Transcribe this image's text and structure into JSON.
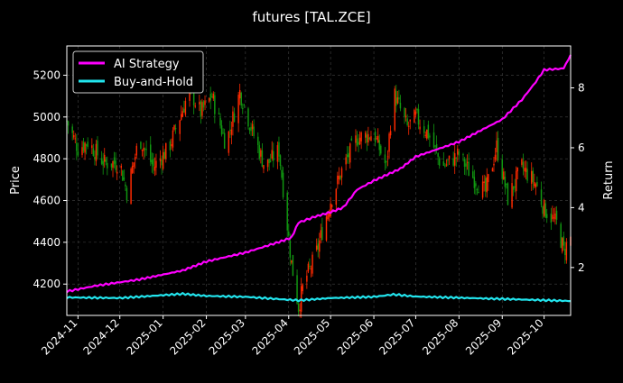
{
  "chart_data": {
    "type": "candlestick",
    "title": "futures [TAL.ZCE]",
    "ylabel_left": "Price",
    "ylabel_right": "Return",
    "background": "#000000",
    "grid": true,
    "legend_position": "top-left",
    "x_range": [
      "2024-10-24",
      "2025-10-20"
    ],
    "x_tick_labels": [
      "2024-11",
      "2024-12",
      "2025-01",
      "2025-02",
      "2025-03",
      "2025-04",
      "2025-05",
      "2025-06",
      "2025-07",
      "2025-08",
      "2025-09",
      "2025-10"
    ],
    "x_ticks": [
      "2024-11-01",
      "2024-12-01",
      "2025-01-01",
      "2025-02-01",
      "2025-03-01",
      "2025-04-01",
      "2025-05-01",
      "2025-06-01",
      "2025-07-01",
      "2025-08-01",
      "2025-09-01",
      "2025-10-01"
    ],
    "y_left_range": [
      4050,
      5340
    ],
    "y_left_ticks": [
      4200,
      4400,
      4600,
      4800,
      5000,
      5200
    ],
    "y_right_range": [
      0.4,
      9.4
    ],
    "y_right_ticks": [
      2,
      4,
      6,
      8
    ],
    "candle_colors": {
      "up": "#ff2a00",
      "down": "#119911"
    },
    "price_anchors": [
      [
        "2024-10-24",
        4980
      ],
      [
        "2024-11-01",
        4850
      ],
      [
        "2024-11-08",
        4880
      ],
      [
        "2024-11-20",
        4780
      ],
      [
        "2024-12-01",
        4780
      ],
      [
        "2024-12-06",
        4640
      ],
      [
        "2024-12-15",
        4900
      ],
      [
        "2024-12-25",
        4760
      ],
      [
        "2025-01-05",
        4850
      ],
      [
        "2025-01-20",
        5130
      ],
      [
        "2025-01-28",
        5020
      ],
      [
        "2025-02-05",
        5100
      ],
      [
        "2025-02-15",
        4870
      ],
      [
        "2025-02-25",
        5120
      ],
      [
        "2025-03-05",
        4950
      ],
      [
        "2025-03-15",
        4760
      ],
      [
        "2025-03-25",
        4840
      ],
      [
        "2025-04-03",
        4300
      ],
      [
        "2025-04-08",
        4090
      ],
      [
        "2025-04-12",
        4210
      ],
      [
        "2025-04-20",
        4330
      ],
      [
        "2025-05-01",
        4600
      ],
      [
        "2025-05-10",
        4760
      ],
      [
        "2025-05-20",
        4900
      ],
      [
        "2025-06-01",
        4920
      ],
      [
        "2025-06-10",
        4760
      ],
      [
        "2025-06-15",
        5120
      ],
      [
        "2025-06-25",
        4950
      ],
      [
        "2025-07-01",
        5000
      ],
      [
        "2025-07-10",
        4920
      ],
      [
        "2025-07-20",
        4760
      ],
      [
        "2025-08-01",
        4820
      ],
      [
        "2025-08-10",
        4720
      ],
      [
        "2025-08-20",
        4640
      ],
      [
        "2025-08-28",
        4860
      ],
      [
        "2025-09-05",
        4610
      ],
      [
        "2025-09-15",
        4760
      ],
      [
        "2025-09-25",
        4680
      ],
      [
        "2025-10-01",
        4560
      ],
      [
        "2025-10-10",
        4490
      ],
      [
        "2025-10-15",
        4360
      ],
      [
        "2025-10-20",
        4420
      ]
    ],
    "series": [
      {
        "name": "AI Strategy",
        "color": "#ff00ff",
        "axis": "right",
        "points": [
          [
            "2024-10-24",
            1.2
          ],
          [
            "2024-11-15",
            1.4
          ],
          [
            "2024-12-15",
            1.6
          ],
          [
            "2025-01-15",
            1.9
          ],
          [
            "2025-02-01",
            2.2
          ],
          [
            "2025-03-01",
            2.5
          ],
          [
            "2025-03-25",
            2.85
          ],
          [
            "2025-04-03",
            3.0
          ],
          [
            "2025-04-08",
            3.5
          ],
          [
            "2025-04-20",
            3.7
          ],
          [
            "2025-05-01",
            3.85
          ],
          [
            "2025-05-10",
            4.0
          ],
          [
            "2025-05-20",
            4.6
          ],
          [
            "2025-06-01",
            4.9
          ],
          [
            "2025-06-20",
            5.3
          ],
          [
            "2025-07-01",
            5.7
          ],
          [
            "2025-08-01",
            6.2
          ],
          [
            "2025-09-01",
            6.95
          ],
          [
            "2025-09-15",
            7.6
          ],
          [
            "2025-09-25",
            8.2
          ],
          [
            "2025-10-01",
            8.6
          ],
          [
            "2025-10-15",
            8.65
          ],
          [
            "2025-10-20",
            9.1
          ]
        ]
      },
      {
        "name": "Buy-and-Hold",
        "color": "#22e5ee",
        "axis": "right",
        "points": [
          [
            "2024-10-24",
            1.0
          ],
          [
            "2024-12-01",
            0.98
          ],
          [
            "2025-01-15",
            1.12
          ],
          [
            "2025-02-01",
            1.05
          ],
          [
            "2025-03-01",
            1.02
          ],
          [
            "2025-04-08",
            0.9
          ],
          [
            "2025-05-01",
            0.98
          ],
          [
            "2025-06-01",
            1.02
          ],
          [
            "2025-06-15",
            1.1
          ],
          [
            "2025-07-01",
            1.03
          ],
          [
            "2025-08-01",
            0.99
          ],
          [
            "2025-09-01",
            0.95
          ],
          [
            "2025-10-20",
            0.88
          ]
        ]
      }
    ]
  }
}
